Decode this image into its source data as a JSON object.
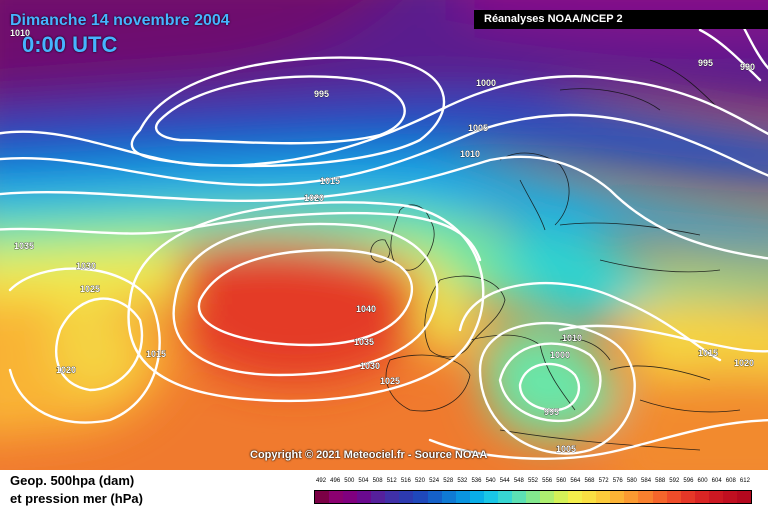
{
  "header": {
    "date": "Dimanche 14 novembre 2004",
    "time": "0:00 UTC",
    "source": "Réanalyses NOAA/NCEP 2"
  },
  "copyright": "Copyright © 2021 Meteociel.fr - Source NOAA",
  "footer": {
    "line1": "Geop. 500hpa (dam)",
    "line2": "et pression mer (hPa)"
  },
  "legend": {
    "ticks": [
      "492",
      "496",
      "500",
      "504",
      "508",
      "512",
      "516",
      "520",
      "524",
      "528",
      "532",
      "536",
      "540",
      "544",
      "548",
      "552",
      "556",
      "560",
      "564",
      "568",
      "572",
      "576",
      "580",
      "584",
      "588",
      "592",
      "596",
      "600",
      "604",
      "608",
      "612"
    ],
    "colors": [
      "#7b0045",
      "#8b0070",
      "#80007f",
      "#6a0a8f",
      "#55209c",
      "#4030a8",
      "#2d3ab0",
      "#1f48bb",
      "#1560c8",
      "#0f7ad4",
      "#0a94e0",
      "#09aee8",
      "#19c6e6",
      "#37d6d2",
      "#5ce0b4",
      "#82e88e",
      "#aeef70",
      "#d4f158",
      "#f4ef4c",
      "#fae043",
      "#fccb3b",
      "#fcb335",
      "#fb9a31",
      "#f9802e",
      "#f5652b",
      "#ef4c29",
      "#e53727",
      "#d92524",
      "#cc1822",
      "#c00f20",
      "#b4081e"
    ]
  },
  "isobars": [
    "1010",
    "995",
    "1000",
    "1005",
    "1010",
    "995",
    "990",
    "1015",
    "1020",
    "1035",
    "1030",
    "1025",
    "1040",
    "1035",
    "1030",
    "1015",
    "1020",
    "1025",
    "1010",
    "1000",
    "995",
    "1005",
    "1015",
    "1020"
  ]
}
